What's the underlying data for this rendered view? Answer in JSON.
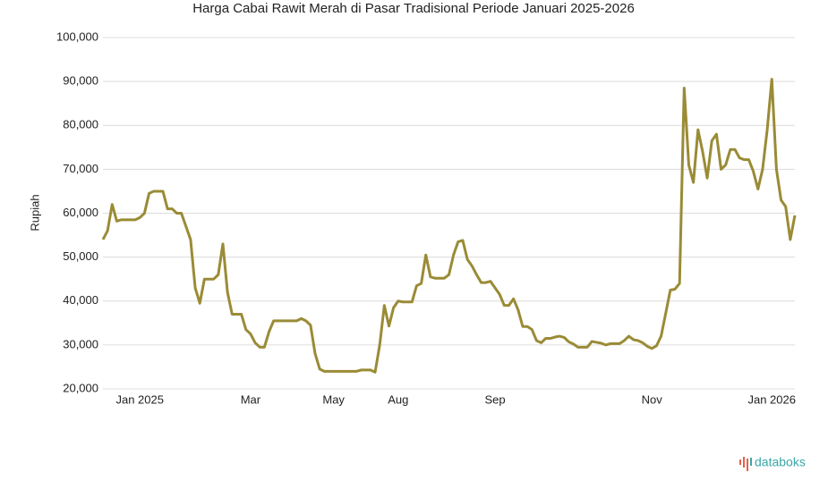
{
  "chart_data": {
    "type": "line",
    "title": "Harga Cabai Rawit Merah di Pasar Tradisional Periode Januari 2025-2026",
    "y_label": "Rupiah",
    "logo": "databoks",
    "color": "#9a8b36",
    "grid": true,
    "ylim": [
      20000,
      100000
    ],
    "yticks": [
      {
        "value": 20000,
        "label": "20,000"
      },
      {
        "value": 30000,
        "label": "30,000"
      },
      {
        "value": 40000,
        "label": "40,000"
      },
      {
        "value": 50000,
        "label": "50,000"
      },
      {
        "value": 60000,
        "label": "60,000"
      },
      {
        "value": 70000,
        "label": "70,000"
      },
      {
        "value": 80000,
        "label": "80,000"
      },
      {
        "value": 90000,
        "label": "90,000"
      },
      {
        "value": 100000,
        "label": "100,000"
      }
    ],
    "categories": [
      null,
      null,
      null,
      null,
      null,
      null,
      null,
      null,
      "Jan 2025",
      null,
      null,
      null,
      null,
      null,
      null,
      null,
      null,
      null,
      null,
      null,
      null,
      null,
      null,
      null,
      null,
      null,
      null,
      null,
      null,
      null,
      null,
      null,
      "Mar",
      null,
      null,
      null,
      null,
      null,
      null,
      null,
      null,
      null,
      null,
      null,
      null,
      null,
      null,
      null,
      null,
      null,
      "May",
      null,
      null,
      null,
      null,
      null,
      null,
      null,
      null,
      null,
      null,
      null,
      null,
      null,
      "Aug",
      null,
      null,
      null,
      null,
      null,
      null,
      null,
      null,
      null,
      null,
      null,
      null,
      null,
      null,
      null,
      null,
      null,
      null,
      null,
      null,
      "Sep",
      null,
      null,
      null,
      null,
      null,
      null,
      null,
      null,
      null,
      null,
      null,
      null,
      null,
      null,
      null,
      null,
      null,
      null,
      null,
      null,
      null,
      null,
      null,
      null,
      null,
      null,
      null,
      null,
      null,
      null,
      null,
      null,
      null,
      "Nov",
      null,
      null,
      null,
      null,
      null,
      null,
      null,
      null,
      null,
      null,
      null,
      null,
      null,
      null,
      null,
      null,
      null,
      null,
      null,
      null,
      null,
      null,
      null,
      null,
      null,
      "Jan 2026",
      null,
      null,
      null,
      null,
      null
    ],
    "values": [
      54000,
      56000,
      62000,
      58200,
      58500,
      58500,
      58500,
      58500,
      59000,
      60000,
      64500,
      65000,
      65000,
      65000,
      61000,
      61000,
      60000,
      60000,
      57000,
      54000,
      43000,
      39500,
      45000,
      45000,
      45000,
      46000,
      53000,
      42000,
      37000,
      37000,
      37000,
      33500,
      32500,
      30500,
      29500,
      29500,
      33000,
      35500,
      35500,
      35500,
      35500,
      35500,
      35500,
      36000,
      35500,
      34500,
      28000,
      24500,
      24000,
      24000,
      24000,
      24000,
      24000,
      24000,
      24000,
      24000,
      24300,
      24300,
      24300,
      23800,
      30000,
      39000,
      34300,
      38500,
      40000,
      39800,
      39800,
      39800,
      43500,
      44000,
      50500,
      45500,
      45200,
      45200,
      45200,
      46000,
      50500,
      53500,
      53800,
      49500,
      48000,
      46000,
      44200,
      44200,
      44500,
      43000,
      41500,
      39000,
      39000,
      40500,
      38000,
      34200,
      34200,
      33500,
      31000,
      30500,
      31500,
      31500,
      31800,
      32000,
      31700,
      30700,
      30200,
      29500,
      29500,
      29500,
      30800,
      30600,
      30400,
      30000,
      30300,
      30300,
      30300,
      31000,
      32000,
      31200,
      31000,
      30500,
      29700,
      29200,
      29800,
      32000,
      37200,
      42500,
      42700,
      44000,
      88500,
      71000,
      67000,
      79000,
      74000,
      68000,
      76500,
      78000,
      70000,
      71000,
      74500,
      74500,
      72600,
      72200,
      72200,
      69500,
      65500,
      70000,
      79000,
      90500,
      70000,
      63000,
      61500,
      54000,
      59500
    ]
  }
}
